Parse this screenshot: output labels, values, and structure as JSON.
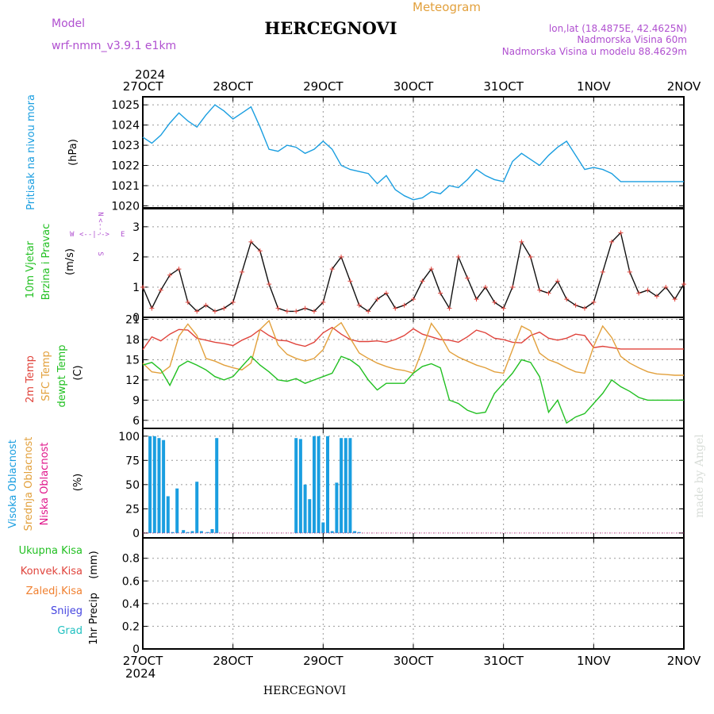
{
  "header": {
    "model_label": "Model",
    "model_name": "wrf-nmm_v3.9.1 e1km",
    "title": "HERCEGNOVI",
    "meteogram_label": "Meteogram",
    "lonlat": "lon,lat (18.4875E, 42.4625N)",
    "altitude": "Nadmorska Visina 60m",
    "model_altitude": "Nadmorska Visina u modelu 88.4629m",
    "footer_title": "HERCEGNOVI",
    "watermark": "made by Angel"
  },
  "colors": {
    "pressure": "#1a9ee0",
    "temp2m": "#e0443c",
    "sfc": "#e2a03c",
    "dew": "#22c022",
    "cloud_high": "#1a9ee0",
    "cloud_mid": "#e2a03c",
    "cloud_low": "#e0188c",
    "rain_total": "#22c022",
    "rain_conv": "#e0443c",
    "rain_frz": "#f08030",
    "snow": "#4444e0",
    "hail": "#20c0c0",
    "wind_label": "#22c022",
    "wind_legend": "#b050d0",
    "model_text": "#b050d0",
    "meteogram_text": "#e2a03c"
  },
  "time_axis": {
    "year_top": "2024",
    "year_bottom": "2024",
    "ticks": [
      "27OCT",
      "28OCT",
      "29OCT",
      "30OCT",
      "31OCT",
      "1NOV",
      "2NOV"
    ]
  },
  "wind_legend": {
    "n": "N",
    "e": "E",
    "s": "S",
    "w": "W",
    "arrow_v": "<---",
    "arrow_h": "<--|-->"
  },
  "chart_data": [
    {
      "type": "line",
      "name": "pressure",
      "ylabel": "Pritisak na nivou mora",
      "unit": "(hPa)",
      "ylim": [
        1019.9,
        1025.4
      ],
      "yticks": [
        1020,
        1021,
        1022,
        1023,
        1024,
        1025
      ],
      "grid": true,
      "series": [
        {
          "x": [
            0,
            0.1,
            0.2,
            0.3,
            0.4,
            0.5,
            0.6,
            0.7,
            0.8,
            0.9,
            1,
            1.1,
            1.2,
            1.3,
            1.4,
            1.5,
            1.6,
            1.7,
            1.8,
            1.9,
            2,
            2.1,
            2.2,
            2.3,
            2.4,
            2.5,
            2.6,
            2.7,
            2.8,
            2.9,
            3,
            3.1,
            3.2,
            3.3,
            3.4,
            3.5,
            3.6,
            3.7,
            3.8,
            3.9,
            4,
            4.1,
            4.2,
            4.3,
            4.4,
            4.5,
            4.6,
            4.7,
            4.8,
            4.9,
            5,
            5.1,
            5.2,
            5.3,
            5.4,
            5.5,
            5.6,
            5.7,
            5.8,
            5.9,
            6
          ],
          "values": [
            1023.4,
            1023.1,
            1023.5,
            1024.1,
            1024.6,
            1024.2,
            1023.9,
            1024.5,
            1025.0,
            1024.7,
            1024.3,
            1024.6,
            1024.9,
            1023.9,
            1022.8,
            1022.7,
            1023.0,
            1022.9,
            1022.6,
            1022.8,
            1023.2,
            1022.8,
            1022.0,
            1021.8,
            1021.7,
            1021.6,
            1021.1,
            1021.5,
            1020.8,
            1020.5,
            1020.3,
            1020.4,
            1020.7,
            1020.6,
            1021.0,
            1020.9,
            1021.3,
            1021.8,
            1021.5,
            1021.3,
            1021.2,
            1022.2,
            1022.6,
            1022.3,
            1022.0,
            1022.5,
            1022.9,
            1023.2,
            1022.5,
            1021.8,
            1021.9,
            1021.8,
            1021.6,
            1021.2,
            1021.2,
            1021.2,
            1021.2,
            1021.2,
            1021.2,
            1021.2,
            1021.2
          ]
        }
      ]
    },
    {
      "type": "line",
      "name": "wind",
      "ylabel_1": "10m Vjetar",
      "ylabel_2": "Brzina i Pravac",
      "unit": "(m/s)",
      "ylim": [
        0,
        3.6
      ],
      "yticks": [
        0,
        1,
        2,
        3
      ],
      "grid": true,
      "series": [
        {
          "x": [
            0,
            0.1,
            0.2,
            0.3,
            0.4,
            0.5,
            0.6,
            0.7,
            0.8,
            0.9,
            1,
            1.1,
            1.2,
            1.3,
            1.4,
            1.5,
            1.6,
            1.7,
            1.8,
            1.9,
            2,
            2.1,
            2.2,
            2.3,
            2.4,
            2.5,
            2.6,
            2.7,
            2.8,
            2.9,
            3,
            3.1,
            3.2,
            3.3,
            3.4,
            3.5,
            3.6,
            3.7,
            3.8,
            3.9,
            4,
            4.1,
            4.2,
            4.3,
            4.4,
            4.5,
            4.6,
            4.7,
            4.8,
            4.9,
            5,
            5.1,
            5.2,
            5.3,
            5.4,
            5.5,
            5.6,
            5.7,
            5.8,
            5.9,
            6
          ],
          "values": [
            1.0,
            0.3,
            0.9,
            1.4,
            1.6,
            0.5,
            0.2,
            0.4,
            0.2,
            0.3,
            0.5,
            1.5,
            2.5,
            2.2,
            1.1,
            0.3,
            0.2,
            0.2,
            0.3,
            0.2,
            0.5,
            1.6,
            2.0,
            1.2,
            0.4,
            0.2,
            0.6,
            0.8,
            0.3,
            0.4,
            0.6,
            1.2,
            1.6,
            0.8,
            0.3,
            2.0,
            1.3,
            0.6,
            1.0,
            0.5,
            0.3,
            1.0,
            2.5,
            2.0,
            0.9,
            0.8,
            1.2,
            0.6,
            0.4,
            0.3,
            0.5,
            1.5,
            2.5,
            2.8,
            1.5,
            0.8,
            0.9,
            0.7,
            1.0,
            0.6,
            1.1
          ]
        }
      ]
    },
    {
      "type": "line",
      "name": "temperature",
      "ylabel_1": "2m Temp",
      "ylabel_2": "SFC Temp",
      "ylabel_3": "dewpt Temp",
      "unit": "(C)",
      "ylim": [
        4.8,
        21.3
      ],
      "yticks": [
        6,
        9,
        12,
        15,
        18,
        21
      ],
      "grid": true,
      "x": [
        0,
        0.1,
        0.2,
        0.3,
        0.4,
        0.5,
        0.6,
        0.7,
        0.8,
        0.9,
        1,
        1.1,
        1.2,
        1.3,
        1.4,
        1.5,
        1.6,
        1.7,
        1.8,
        1.9,
        2,
        2.1,
        2.2,
        2.3,
        2.4,
        2.5,
        2.6,
        2.7,
        2.8,
        2.9,
        3,
        3.1,
        3.2,
        3.3,
        3.4,
        3.5,
        3.6,
        3.7,
        3.8,
        3.9,
        4,
        4.1,
        4.2,
        4.3,
        4.4,
        4.5,
        4.6,
        4.7,
        4.8,
        4.9,
        5,
        5.1,
        5.2,
        5.3,
        5.4,
        5.5,
        5.6,
        5.7,
        5.8,
        5.9,
        6
      ],
      "series": [
        {
          "key": "temp2m",
          "values": [
            16.5,
            18.4,
            17.8,
            18.8,
            19.5,
            19.4,
            18.2,
            17.9,
            17.6,
            17.4,
            17.1,
            17.9,
            18.5,
            19.5,
            18.6,
            17.9,
            17.8,
            17.3,
            17.0,
            17.6,
            19.0,
            19.8,
            18.8,
            18.0,
            17.7,
            17.7,
            17.8,
            17.6,
            18.0,
            18.6,
            19.6,
            18.8,
            18.4,
            18.0,
            17.9,
            17.6,
            18.4,
            19.4,
            19.0,
            18.2,
            18.0,
            17.6,
            17.5,
            18.6,
            19.1,
            18.2,
            17.9,
            18.2,
            18.8,
            18.6,
            16.8,
            17.0,
            16.8,
            16.6,
            16.6,
            16.6,
            16.6,
            16.6,
            16.6,
            16.6,
            16.6
          ]
        },
        {
          "key": "sfc",
          "values": [
            14.5,
            13.2,
            13.0,
            14.0,
            18.5,
            20.3,
            18.6,
            15.2,
            14.8,
            14.2,
            13.8,
            13.5,
            14.5,
            19.5,
            20.8,
            17.2,
            15.8,
            15.2,
            14.8,
            15.2,
            16.5,
            19.5,
            20.5,
            18.2,
            16.0,
            15.2,
            14.5,
            14.0,
            13.6,
            13.4,
            13.0,
            16.5,
            20.4,
            18.6,
            16.2,
            15.4,
            14.8,
            14.2,
            13.8,
            13.2,
            13.0,
            16.5,
            20.0,
            19.3,
            16.0,
            15.0,
            14.5,
            13.8,
            13.2,
            13.0,
            17.0,
            20.0,
            18.3,
            15.5,
            14.5,
            13.8,
            13.2,
            12.9,
            12.8,
            12.7,
            12.7
          ]
        },
        {
          "key": "dew",
          "values": [
            14.2,
            14.6,
            13.5,
            11.2,
            14.0,
            14.8,
            14.2,
            13.5,
            12.5,
            12.0,
            12.5,
            14.0,
            15.5,
            14.2,
            13.2,
            12.0,
            11.8,
            12.2,
            11.5,
            12.0,
            12.5,
            13.0,
            15.5,
            15.0,
            14.0,
            12.0,
            10.5,
            11.5,
            11.5,
            11.5,
            13.0,
            14.0,
            14.4,
            13.8,
            9.0,
            8.5,
            7.5,
            7.0,
            7.2,
            10.0,
            11.5,
            13.0,
            15.0,
            14.6,
            12.5,
            7.2,
            9.0,
            5.6,
            6.5,
            7.0,
            8.5,
            10.0,
            12.0,
            11.0,
            10.3,
            9.4,
            9.0,
            9.0,
            9.0,
            9.0,
            9.0
          ]
        }
      ]
    },
    {
      "type": "bar",
      "name": "clouds",
      "ylabel_1": "Visoka Oblacnost",
      "ylabel_2": "Srednja Oblacnost",
      "ylabel_3": "Niska Oblacnost",
      "unit": "(%)",
      "ylim": [
        -5,
        108
      ],
      "yticks": [
        0,
        25,
        50,
        75,
        100
      ],
      "grid": true,
      "high_cloud": {
        "x": [
          0.08,
          0.13,
          0.18,
          0.23,
          0.28,
          0.33,
          0.38,
          0.45,
          0.5,
          0.55,
          0.6,
          0.65,
          0.72,
          0.77,
          0.82,
          1.7,
          1.75,
          1.8,
          1.85,
          1.9,
          1.95,
          2.0,
          2.05,
          2.1,
          2.15,
          2.2,
          2.25,
          2.3,
          2.35,
          2.4
        ],
        "values": [
          100,
          100,
          98,
          96,
          38,
          1,
          46,
          3,
          1,
          2,
          53,
          2,
          1,
          4,
          98,
          98,
          97,
          50,
          35,
          100,
          100,
          11,
          100,
          2,
          52,
          98,
          98,
          98,
          2,
          1
        ]
      }
    },
    {
      "type": "bar",
      "name": "precipitation",
      "ylabel": "1hr Precip",
      "unit": "(mm)",
      "legend": [
        "Ukupna Kisa",
        "Konvek.Kisa",
        "Zaledj.Kisa",
        "Snijeg",
        "Grad"
      ],
      "ylim": [
        0,
        0.98
      ],
      "yticks": [
        0,
        0.2,
        0.4,
        0.6,
        0.8
      ],
      "grid": true,
      "values": []
    }
  ]
}
